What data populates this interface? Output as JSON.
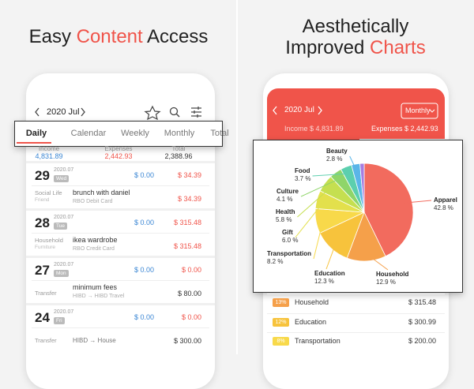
{
  "left_panel": {
    "headline": [
      "Easy ",
      "Content",
      " Access"
    ],
    "month": "2020 Jul",
    "tabs": [
      "Daily",
      "Calendar",
      "Weekly",
      "Monthly",
      "Total"
    ],
    "summary": [
      {
        "label": "Income",
        "value": "4,831.89"
      },
      {
        "label": "Expenses",
        "value": "2,442.93"
      },
      {
        "label": "Total",
        "value": "2,388.96"
      }
    ],
    "days": [
      {
        "day": "29",
        "month": "2020.07",
        "weekday": "Wed",
        "income": "$ 0.00",
        "expense": "$ 34.39",
        "item": {
          "category": "Social Life",
          "subcategory": "Friend",
          "description": "brunch with daniel",
          "account": "RBO Debit Card",
          "amount": "$ 34.39"
        }
      },
      {
        "day": "28",
        "month": "2020.07",
        "weekday": "Tue",
        "income": "$ 0.00",
        "expense": "$ 315.48",
        "item": {
          "category": "Household",
          "subcategory": "Furniture",
          "description": "ikea wardrobe",
          "account": "RBO Credit Card",
          "amount": "$ 315.48"
        }
      },
      {
        "day": "27",
        "month": "2020.07",
        "weekday": "Mon",
        "income": "$ 0.00",
        "expense": "$ 0.00",
        "item": {
          "category": "Transfer",
          "subcategory": null,
          "description": "minimum fees",
          "account": "HIBD → HIBD Travel",
          "amount": "$ 80.00"
        }
      },
      {
        "day": "24",
        "month": "2020.07",
        "weekday": "Fri",
        "income": "$ 0.00",
        "expense": "$ 0.00",
        "item": {
          "category": "Transfer",
          "subcategory": null,
          "description": null,
          "account": "HIBD → House",
          "amount": "$ 300.00"
        }
      }
    ]
  },
  "right_panel": {
    "headline_line1": "Aesthetically",
    "headline_line2": [
      "Improved ",
      "Charts"
    ],
    "month": "2020 Jul",
    "period": "Monthly",
    "income_label": "Income",
    "income": "$ 4,831.89",
    "expenses_label": "Expenses",
    "expenses": "$ 2,442.93",
    "rows": [
      {
        "percent": "13%",
        "name": "Household",
        "amount": "$ 315.48",
        "color": "#f5a04a"
      },
      {
        "percent": "12%",
        "name": "Education",
        "amount": "$ 300.99",
        "color": "#f7c33c"
      },
      {
        "percent": "8%",
        "name": "Transportation",
        "amount": "$ 200.00",
        "color": "#f8d94a"
      }
    ]
  },
  "chart_data": {
    "type": "pie",
    "categories": [
      "Apparel",
      "Household",
      "Education",
      "Transportation",
      "Gift",
      "Health",
      "Culture",
      "Food",
      "Beauty",
      null
    ],
    "values": [
      42.8,
      12.9,
      12.3,
      8.2,
      6.0,
      5.8,
      4.1,
      3.7,
      2.8,
      1.4
    ],
    "value_labels": [
      "42.8 %",
      "12.9 %",
      "12.3 %",
      "8.2 %",
      "6.0 %",
      "5.8 %",
      "4.1 %",
      "3.7 %",
      "2.8 %",
      null
    ],
    "colors": [
      "#f26b5e",
      "#f5a04a",
      "#f7c33c",
      "#f8d94a",
      "#e3e04c",
      "#c5df50",
      "#8fd56a",
      "#5ccfae",
      "#5ab5e8",
      "#a77de0"
    ]
  }
}
